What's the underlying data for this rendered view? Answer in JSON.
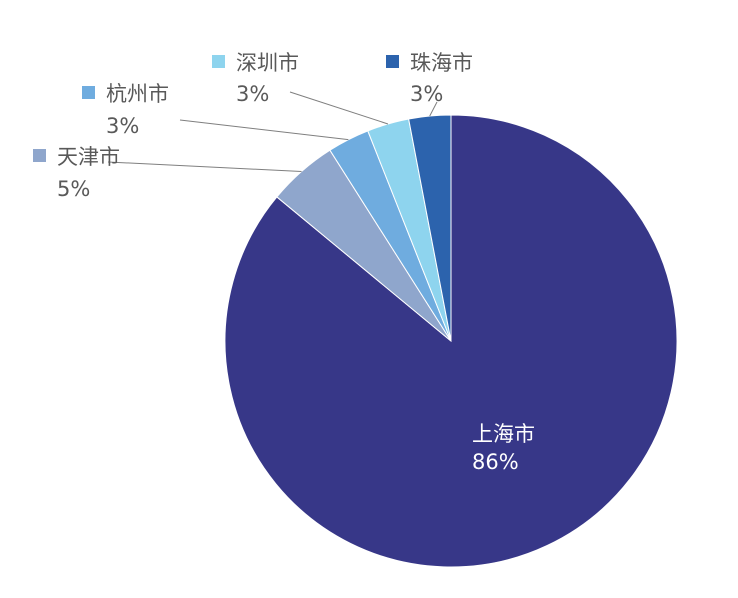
{
  "chart_data": {
    "type": "pie",
    "title": "",
    "categories": [
      "上海市",
      "天津市",
      "杭州市",
      "深圳市",
      "珠海市"
    ],
    "values": [
      86,
      5,
      3,
      3,
      3
    ],
    "value_labels": [
      "86%",
      "5%",
      "3%",
      "3%",
      "3%"
    ],
    "colors": [
      "#373788",
      "#8fa6cc",
      "#6facdf",
      "#8ed4ee",
      "#2c63ad"
    ],
    "start_angle_deg": 0,
    "direction": "clockwise-from-12-oclock",
    "legend": "none",
    "label_style": "category-and-percent"
  }
}
